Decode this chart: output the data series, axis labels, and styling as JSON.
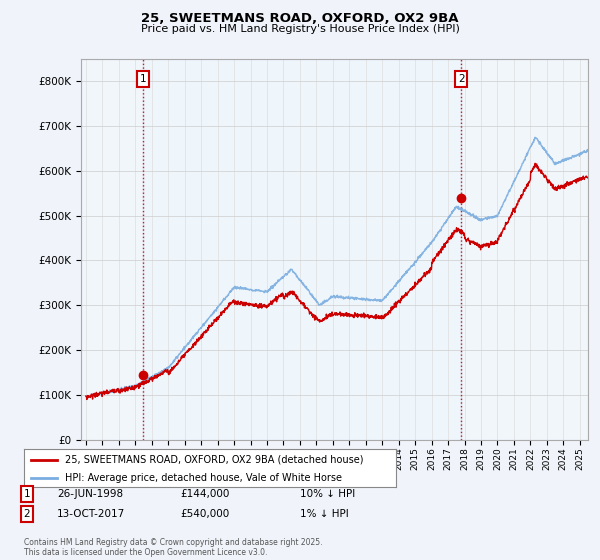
{
  "title_line1": "25, SWEETMANS ROAD, OXFORD, OX2 9BA",
  "title_line2": "Price paid vs. HM Land Registry's House Price Index (HPI)",
  "legend_line1": "25, SWEETMANS ROAD, OXFORD, OX2 9BA (detached house)",
  "legend_line2": "HPI: Average price, detached house, Vale of White Horse",
  "annotation1_date": "26-JUN-1998",
  "annotation1_price": "£144,000",
  "annotation1_hpi": "10% ↓ HPI",
  "annotation2_date": "13-OCT-2017",
  "annotation2_price": "£540,000",
  "annotation2_hpi": "1% ↓ HPI",
  "footnote": "Contains HM Land Registry data © Crown copyright and database right 2025.\nThis data is licensed under the Open Government Licence v3.0.",
  "red_color": "#cc0000",
  "blue_color": "#7aade0",
  "background_color": "#f0f4fa",
  "plot_bg_color": "#ffffff",
  "ylim": [
    0,
    850000
  ],
  "yticks": [
    0,
    100000,
    200000,
    300000,
    400000,
    500000,
    600000,
    700000,
    800000
  ],
  "ytick_labels": [
    "£0",
    "£100K",
    "£200K",
    "£300K",
    "£400K",
    "£500K",
    "£600K",
    "£700K",
    "£800K"
  ],
  "xstart_year": 1995,
  "xend_year": 2025,
  "sale1_year": 1998.49,
  "sale1_price": 144000,
  "sale2_year": 2017.79,
  "sale2_price": 540000
}
